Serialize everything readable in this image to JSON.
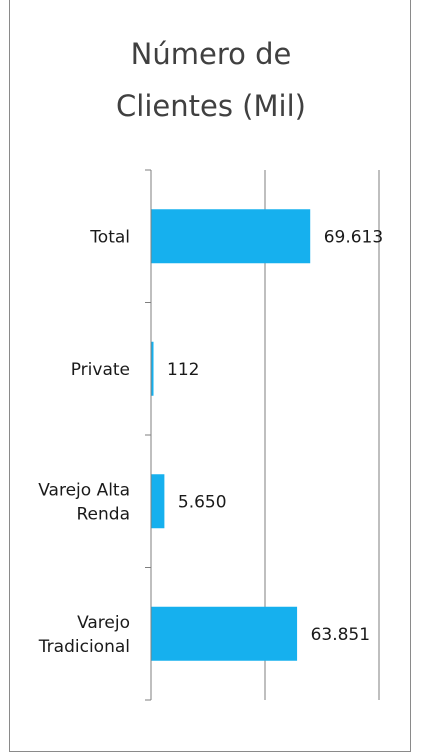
{
  "chart_data": {
    "type": "bar",
    "orientation": "horizontal",
    "title": "Número de\nClientes (Mil)",
    "categories": [
      "Total",
      "Private",
      "Varejo Alta Renda",
      "Varejo Tradicional"
    ],
    "category_lines": [
      [
        "Total"
      ],
      [
        "Private"
      ],
      [
        "Varejo Alta",
        "Renda"
      ],
      [
        "Varejo",
        "Tradicional"
      ]
    ],
    "values": [
      69613,
      112,
      5650,
      63851
    ],
    "value_labels": [
      "69.613",
      "112",
      "5.650",
      "63.851"
    ],
    "xlim": [
      0,
      100000
    ],
    "gridlines": [
      50000,
      100000
    ],
    "grid": true,
    "bar_color": "#16b0ee"
  }
}
